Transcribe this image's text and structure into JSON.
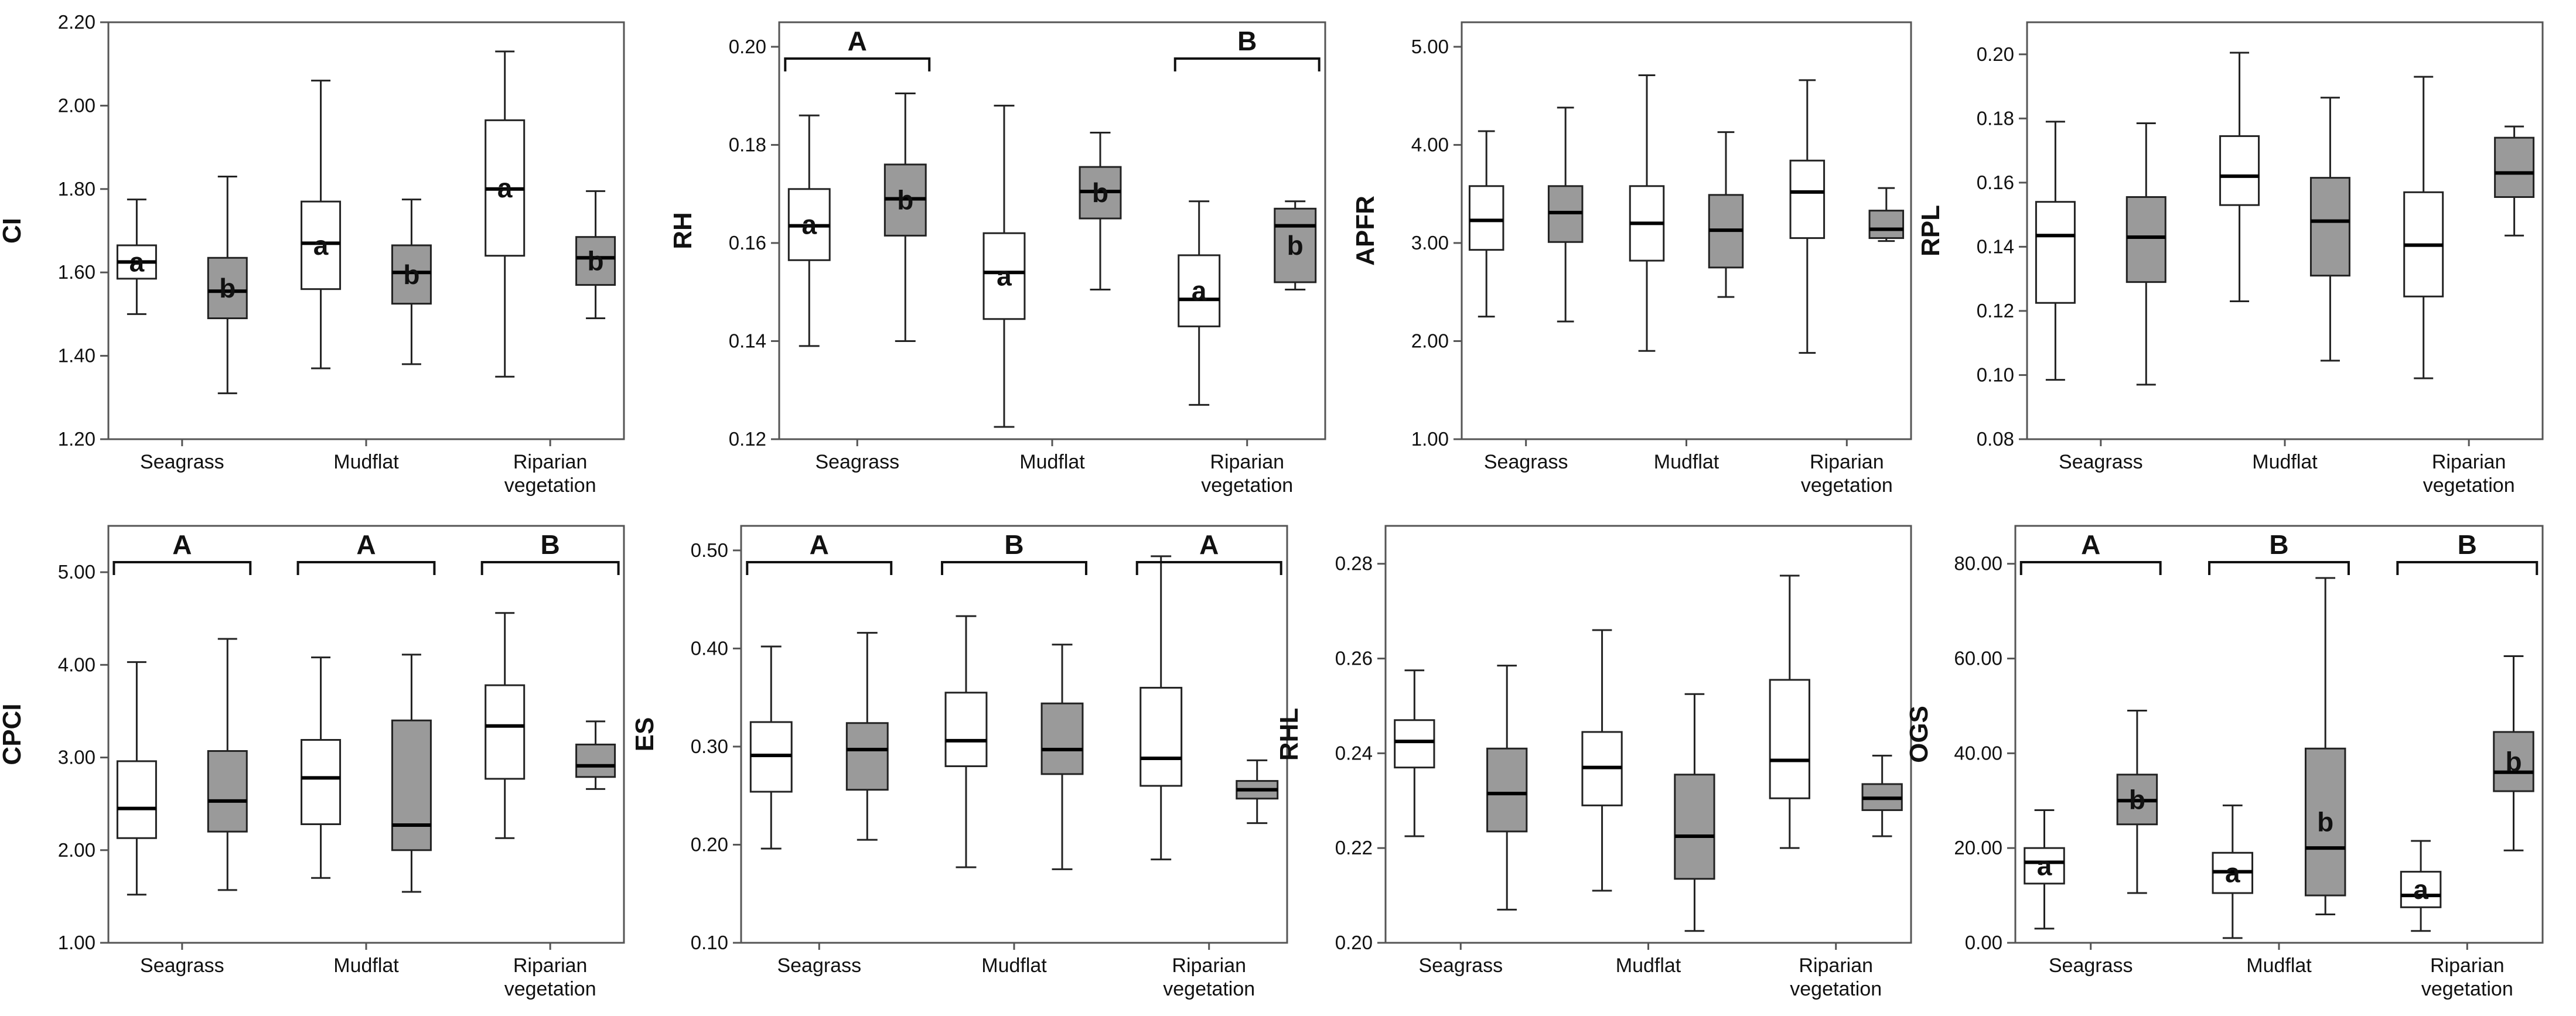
{
  "colors": {
    "group1_fill": "#ffffff",
    "group2_fill": "#9a9a9a",
    "stroke": "#222222",
    "frame": "#555555"
  },
  "chart_data": [
    {
      "type": "boxplot",
      "ylabel": "CI",
      "ylim": [
        1.2,
        2.2
      ],
      "ystep": 0.2,
      "decimals": 2,
      "categories": [
        "Seagrass",
        "Mudflat",
        "Riparian\nvegetation"
      ],
      "boxes": [
        {
          "category": 0,
          "series": 0,
          "min": 1.5,
          "q1": 1.585,
          "median": 1.625,
          "q3": 1.665,
          "max": 1.775,
          "letter": "a"
        },
        {
          "category": 0,
          "series": 1,
          "min": 1.31,
          "q1": 1.49,
          "median": 1.555,
          "q3": 1.635,
          "max": 1.83,
          "letter": "b"
        },
        {
          "category": 1,
          "series": 0,
          "min": 1.37,
          "q1": 1.56,
          "median": 1.67,
          "q3": 1.77,
          "max": 2.06,
          "letter": "a"
        },
        {
          "category": 1,
          "series": 1,
          "min": 1.38,
          "q1": 1.525,
          "median": 1.6,
          "q3": 1.665,
          "max": 1.775,
          "letter": "b"
        },
        {
          "category": 2,
          "series": 0,
          "min": 1.35,
          "q1": 1.64,
          "median": 1.8,
          "q3": 1.965,
          "max": 2.13,
          "letter": "a"
        },
        {
          "category": 2,
          "series": 1,
          "min": 1.49,
          "q1": 1.57,
          "median": 1.635,
          "q3": 1.685,
          "max": 1.795,
          "letter": "b"
        }
      ],
      "groups": []
    },
    {
      "type": "boxplot",
      "ylabel": "RH",
      "ylim": [
        0.12,
        0.205
      ],
      "ystep": 0.02,
      "decimals": 2,
      "categories": [
        "Seagrass",
        "Mudflat",
        "Riparian\nvegetation"
      ],
      "boxes": [
        {
          "category": 0,
          "series": 0,
          "min": 0.139,
          "q1": 0.1565,
          "median": 0.1635,
          "q3": 0.171,
          "max": 0.186,
          "letter": "a"
        },
        {
          "category": 0,
          "series": 1,
          "min": 0.14,
          "q1": 0.1615,
          "median": 0.169,
          "q3": 0.176,
          "max": 0.1905,
          "letter": "b"
        },
        {
          "category": 1,
          "series": 0,
          "min": 0.1225,
          "q1": 0.1445,
          "median": 0.154,
          "q3": 0.162,
          "max": 0.188,
          "letter": "a"
        },
        {
          "category": 1,
          "series": 1,
          "min": 0.1505,
          "q1": 0.165,
          "median": 0.1705,
          "q3": 0.1755,
          "max": 0.1825,
          "letter": "b"
        },
        {
          "category": 2,
          "series": 0,
          "min": 0.127,
          "q1": 0.143,
          "median": 0.1485,
          "q3": 0.1575,
          "max": 0.1685,
          "letter": "a"
        },
        {
          "category": 2,
          "series": 1,
          "min": 0.1505,
          "q1": 0.152,
          "median": 0.1635,
          "q3": 0.167,
          "max": 0.1685,
          "letter": "b"
        }
      ],
      "groups": [
        {
          "category": 0,
          "label": "A"
        },
        {
          "category": 2,
          "label": "B"
        }
      ]
    },
    {
      "type": "boxplot",
      "ylabel": "APFR",
      "ylim": [
        1.0,
        5.25
      ],
      "ystep": 1.0,
      "decimals": 2,
      "categories": [
        "Seagrass",
        "Mudflat",
        "Riparian\nvegetation"
      ],
      "boxes": [
        {
          "category": 0,
          "series": 0,
          "min": 2.25,
          "q1": 2.93,
          "median": 3.23,
          "q3": 3.58,
          "max": 4.14
        },
        {
          "category": 0,
          "series": 1,
          "min": 2.2,
          "q1": 3.01,
          "median": 3.31,
          "q3": 3.58,
          "max": 4.38
        },
        {
          "category": 1,
          "series": 0,
          "min": 1.9,
          "q1": 2.82,
          "median": 3.2,
          "q3": 3.58,
          "max": 4.71
        },
        {
          "category": 1,
          "series": 1,
          "min": 2.45,
          "q1": 2.75,
          "median": 3.13,
          "q3": 3.49,
          "max": 4.13
        },
        {
          "category": 2,
          "series": 0,
          "min": 1.88,
          "q1": 3.05,
          "median": 3.52,
          "q3": 3.84,
          "max": 4.66
        },
        {
          "category": 2,
          "series": 1,
          "min": 3.02,
          "q1": 3.05,
          "median": 3.14,
          "q3": 3.33,
          "max": 3.56
        }
      ],
      "groups": []
    },
    {
      "type": "boxplot",
      "ylabel": "RPL",
      "ylim": [
        0.08,
        0.21
      ],
      "ystep": 0.02,
      "decimals": 2,
      "categories": [
        "Seagrass",
        "Mudflat",
        "Riparian\nvegetation"
      ],
      "boxes": [
        {
          "category": 0,
          "series": 0,
          "min": 0.0985,
          "q1": 0.1225,
          "median": 0.1435,
          "q3": 0.154,
          "max": 0.179
        },
        {
          "category": 0,
          "series": 1,
          "min": 0.097,
          "q1": 0.129,
          "median": 0.143,
          "q3": 0.1555,
          "max": 0.1785
        },
        {
          "category": 1,
          "series": 0,
          "min": 0.123,
          "q1": 0.153,
          "median": 0.162,
          "q3": 0.1745,
          "max": 0.2005
        },
        {
          "category": 1,
          "series": 1,
          "min": 0.1045,
          "q1": 0.131,
          "median": 0.148,
          "q3": 0.1615,
          "max": 0.1865
        },
        {
          "category": 2,
          "series": 0,
          "min": 0.099,
          "q1": 0.1245,
          "median": 0.1405,
          "q3": 0.157,
          "max": 0.193
        },
        {
          "category": 2,
          "series": 1,
          "min": 0.1435,
          "q1": 0.1555,
          "median": 0.163,
          "q3": 0.174,
          "max": 0.1775
        }
      ],
      "groups": []
    },
    {
      "type": "boxplot",
      "ylabel": "CPCI",
      "ylim": [
        1.0,
        5.5
      ],
      "ystep": 1.0,
      "decimals": 2,
      "categories": [
        "Seagrass",
        "Mudflat",
        "Riparian\nvegetation"
      ],
      "boxes": [
        {
          "category": 0,
          "series": 0,
          "min": 1.52,
          "q1": 2.13,
          "median": 2.45,
          "q3": 2.96,
          "max": 4.03
        },
        {
          "category": 0,
          "series": 1,
          "min": 1.57,
          "q1": 2.2,
          "median": 2.53,
          "q3": 3.07,
          "max": 4.28
        },
        {
          "category": 1,
          "series": 0,
          "min": 1.7,
          "q1": 2.28,
          "median": 2.78,
          "q3": 3.19,
          "max": 4.08
        },
        {
          "category": 1,
          "series": 1,
          "min": 1.55,
          "q1": 2.0,
          "median": 2.27,
          "q3": 3.4,
          "max": 4.11
        },
        {
          "category": 2,
          "series": 0,
          "min": 2.13,
          "q1": 2.77,
          "median": 3.34,
          "q3": 3.78,
          "max": 4.56
        },
        {
          "category": 2,
          "series": 1,
          "min": 2.66,
          "q1": 2.79,
          "median": 2.91,
          "q3": 3.14,
          "max": 3.39
        }
      ],
      "groups": [
        {
          "category": 0,
          "label": "A"
        },
        {
          "category": 1,
          "label": "A"
        },
        {
          "category": 2,
          "label": "B"
        }
      ]
    },
    {
      "type": "boxplot",
      "ylabel": "ES",
      "ylim": [
        0.1,
        0.525
      ],
      "ystep": 0.1,
      "decimals": 2,
      "categories": [
        "Seagrass",
        "Mudflat",
        "Riparian\nvegetation"
      ],
      "boxes": [
        {
          "category": 0,
          "series": 0,
          "min": 0.196,
          "q1": 0.254,
          "median": 0.291,
          "q3": 0.325,
          "max": 0.402
        },
        {
          "category": 0,
          "series": 1,
          "min": 0.205,
          "q1": 0.256,
          "median": 0.297,
          "q3": 0.324,
          "max": 0.416
        },
        {
          "category": 1,
          "series": 0,
          "min": 0.177,
          "q1": 0.28,
          "median": 0.306,
          "q3": 0.355,
          "max": 0.433
        },
        {
          "category": 1,
          "series": 1,
          "min": 0.175,
          "q1": 0.272,
          "median": 0.297,
          "q3": 0.344,
          "max": 0.404
        },
        {
          "category": 2,
          "series": 0,
          "min": 0.185,
          "q1": 0.26,
          "median": 0.288,
          "q3": 0.36,
          "max": 0.494
        },
        {
          "category": 2,
          "series": 1,
          "min": 0.222,
          "q1": 0.247,
          "median": 0.256,
          "q3": 0.265,
          "max": 0.286
        }
      ],
      "groups": [
        {
          "category": 0,
          "label": "A"
        },
        {
          "category": 1,
          "label": "B"
        },
        {
          "category": 2,
          "label": "A"
        }
      ]
    },
    {
      "type": "boxplot",
      "ylabel": "RHL",
      "ylim": [
        0.2,
        0.288
      ],
      "ystep": 0.02,
      "decimals": 2,
      "categories": [
        "Seagrass",
        "Mudflat",
        "Riparian\nvegetation"
      ],
      "boxes": [
        {
          "category": 0,
          "series": 0,
          "min": 0.2225,
          "q1": 0.237,
          "median": 0.2425,
          "q3": 0.247,
          "max": 0.2575
        },
        {
          "category": 0,
          "series": 1,
          "min": 0.207,
          "q1": 0.2235,
          "median": 0.2315,
          "q3": 0.241,
          "max": 0.2585
        },
        {
          "category": 1,
          "series": 0,
          "min": 0.211,
          "q1": 0.229,
          "median": 0.237,
          "q3": 0.2445,
          "max": 0.266
        },
        {
          "category": 1,
          "series": 1,
          "min": 0.2025,
          "q1": 0.2135,
          "median": 0.2225,
          "q3": 0.2355,
          "max": 0.2525
        },
        {
          "category": 2,
          "series": 0,
          "min": 0.22,
          "q1": 0.2305,
          "median": 0.2385,
          "q3": 0.2555,
          "max": 0.2775
        },
        {
          "category": 2,
          "series": 1,
          "min": 0.2225,
          "q1": 0.228,
          "median": 0.2305,
          "q3": 0.2335,
          "max": 0.2395
        }
      ],
      "groups": []
    },
    {
      "type": "boxplot",
      "ylabel": "OGS",
      "ylim": [
        0.0,
        88.0
      ],
      "ystep": 20.0,
      "decimals": 2,
      "categories": [
        "Seagrass",
        "Mudflat",
        "Riparian\nvegetation"
      ],
      "boxes": [
        {
          "category": 0,
          "series": 0,
          "min": 3.0,
          "q1": 12.5,
          "median": 17.0,
          "q3": 20.0,
          "max": 28.0,
          "letter": "a"
        },
        {
          "category": 0,
          "series": 1,
          "min": 10.5,
          "q1": 25.0,
          "median": 30.0,
          "q3": 35.5,
          "max": 49.0,
          "letter": "b"
        },
        {
          "category": 1,
          "series": 0,
          "min": 1.0,
          "q1": 10.5,
          "median": 15.0,
          "q3": 19.0,
          "max": 29.0,
          "letter": "a"
        },
        {
          "category": 1,
          "series": 1,
          "min": 6.0,
          "q1": 10.0,
          "median": 20.0,
          "q3": 41.0,
          "max": 77.0,
          "letter": "b"
        },
        {
          "category": 2,
          "series": 0,
          "min": 2.5,
          "q1": 7.5,
          "median": 10.0,
          "q3": 15.0,
          "max": 21.5,
          "letter": "a"
        },
        {
          "category": 2,
          "series": 1,
          "min": 19.5,
          "q1": 32.0,
          "median": 36.0,
          "q3": 44.5,
          "max": 60.5,
          "letter": "b"
        }
      ],
      "groups": [
        {
          "category": 0,
          "label": "A"
        },
        {
          "category": 1,
          "label": "B"
        },
        {
          "category": 2,
          "label": "B"
        }
      ]
    }
  ]
}
